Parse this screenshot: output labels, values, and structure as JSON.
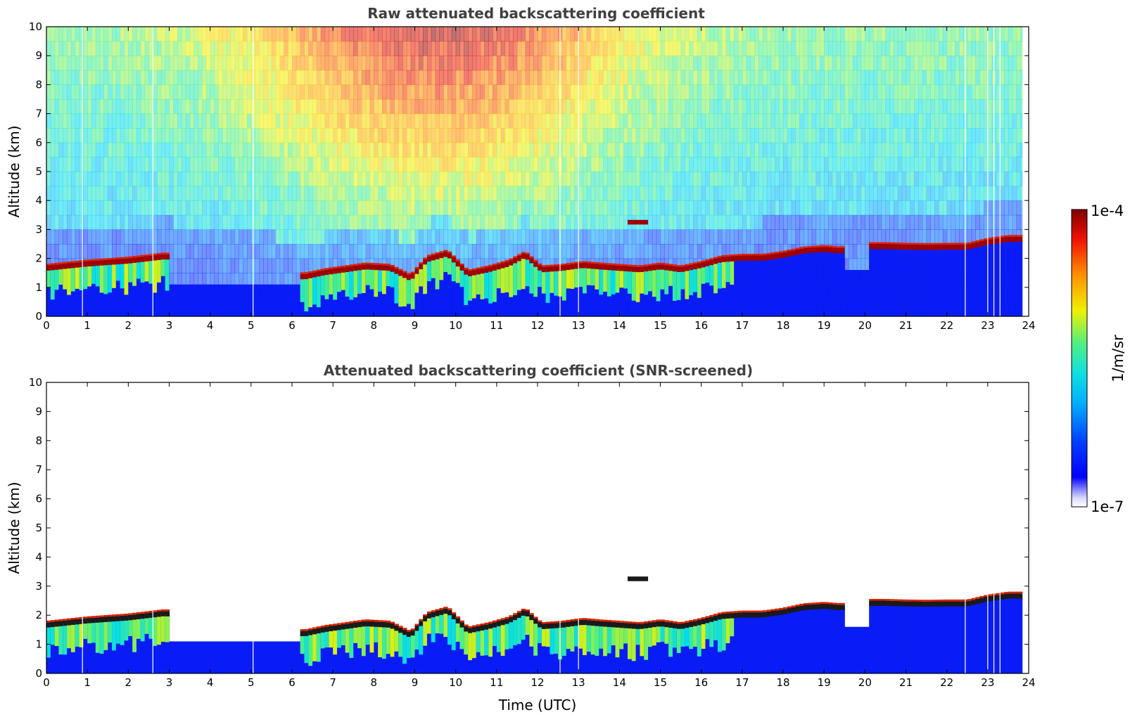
{
  "chart_data": [
    {
      "type": "heatmap",
      "title": "Raw attenuated backscattering coefficient",
      "xlabel": "",
      "ylabel": "Altitude (km)",
      "xlim": [
        0,
        24
      ],
      "ylim": [
        0,
        10
      ],
      "xticks": [
        0,
        1,
        2,
        3,
        4,
        5,
        6,
        7,
        8,
        9,
        10,
        11,
        12,
        13,
        14,
        15,
        16,
        17,
        18,
        19,
        20,
        21,
        22,
        23,
        24
      ],
      "yticks": [
        0,
        1,
        2,
        3,
        4,
        5,
        6,
        7,
        8,
        9,
        10
      ],
      "screened": false,
      "cloud_base_km": {
        "x": [
          0,
          1,
          2,
          2.9,
          6.3,
          6.8,
          7.3,
          7.8,
          8.4,
          8.9,
          9.3,
          9.8,
          10.3,
          10.8,
          11.3,
          11.7,
          12.1,
          12.6,
          13.1,
          13.5,
          14.0,
          14.5,
          15.0,
          15.5,
          16.0,
          16.5,
          17.0,
          17.5,
          18.0,
          18.5,
          19.0,
          19.4,
          20.1,
          20.5,
          21.0,
          21.5,
          22.0,
          22.5,
          23.0,
          23.5,
          23.8
        ],
        "y": [
          1.65,
          1.8,
          1.9,
          2.05,
          1.35,
          1.5,
          1.6,
          1.7,
          1.65,
          1.3,
          1.95,
          2.15,
          1.45,
          1.6,
          1.8,
          2.1,
          1.6,
          1.65,
          1.75,
          1.7,
          1.65,
          1.6,
          1.7,
          1.6,
          1.75,
          1.95,
          2.0,
          2.0,
          2.1,
          2.25,
          2.3,
          2.25,
          2.4,
          2.4,
          2.38,
          2.37,
          2.38,
          2.38,
          2.55,
          2.65,
          2.65
        ]
      },
      "high_cloud": {
        "x0": 14.2,
        "x1": 14.7,
        "y": 3.25
      },
      "gaps_utc": [
        0.88,
        2.6,
        5.05,
        12.55,
        13.0,
        22.45,
        23.0,
        23.15,
        23.3
      ]
    },
    {
      "type": "heatmap",
      "title": "Attenuated backscattering coefficient (SNR-screened)",
      "xlabel": "Time (UTC)",
      "ylabel": "Altitude (km)",
      "xlim": [
        0,
        24
      ],
      "ylim": [
        0,
        10
      ],
      "xticks": [
        0,
        1,
        2,
        3,
        4,
        5,
        6,
        7,
        8,
        9,
        10,
        11,
        12,
        13,
        14,
        15,
        16,
        17,
        18,
        19,
        20,
        21,
        22,
        23,
        24
      ],
      "yticks": [
        0,
        1,
        2,
        3,
        4,
        5,
        6,
        7,
        8,
        9,
        10
      ],
      "screened": true
    }
  ],
  "colorbar": {
    "label": "1/m/sr",
    "max_label": "1e-4",
    "min_label": "1e-7",
    "scale": "log",
    "range": [
      1e-07,
      0.0001
    ],
    "colormap": "jet"
  }
}
